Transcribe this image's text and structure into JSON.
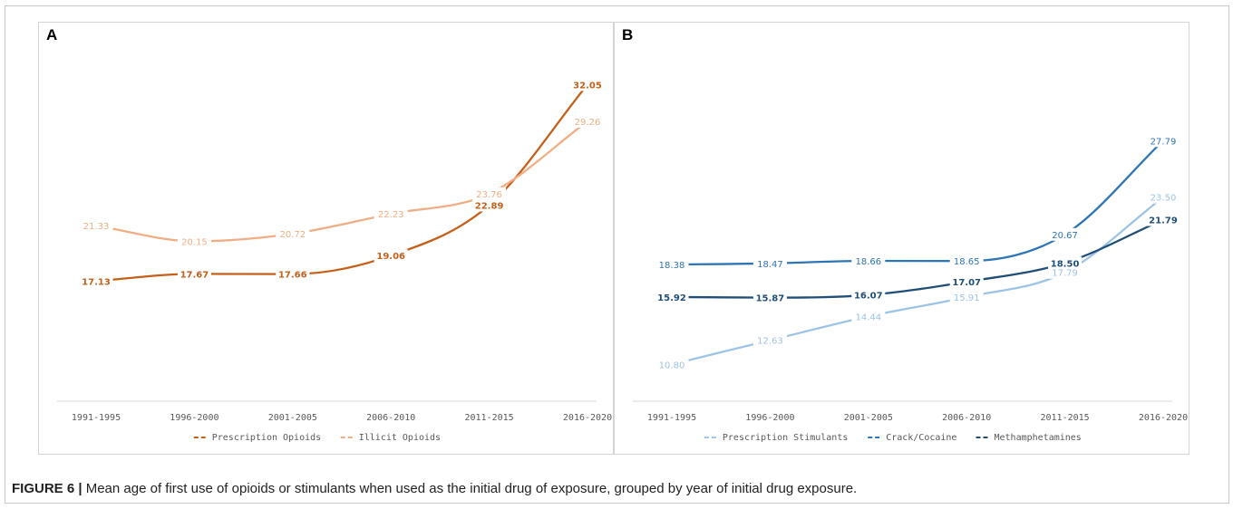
{
  "caption": {
    "figure_label": "FIGURE 6 |",
    "text": " Mean age of first use of opioids or stimulants when used as the initial drug of exposure, grouped by year of initial drug exposure."
  },
  "chart_data": [
    {
      "panel": "A",
      "type": "line",
      "categories": [
        "1991-1995",
        "1996-2000",
        "2001-2005",
        "2006-2010",
        "2011-2015",
        "2016-2020"
      ],
      "ylim": [
        8,
        34
      ],
      "grid": false,
      "legend_position": "bottom",
      "series": [
        {
          "name": "Prescription Opioids",
          "color": "#c5601b",
          "bold": true,
          "values": [
            17.13,
            17.67,
            17.66,
            19.06,
            22.89,
            32.05
          ],
          "labels": [
            "17.13",
            "17.67",
            "17.66",
            "19.06",
            "22.89",
            "32.05"
          ]
        },
        {
          "name": "Illicit Opioids",
          "color": "#f0ae84",
          "bold": false,
          "values": [
            21.33,
            20.15,
            20.72,
            22.23,
            23.76,
            29.26
          ],
          "labels": [
            "21.33",
            "20.15",
            "20.72",
            "22.23",
            "23.76",
            "29.26"
          ]
        }
      ]
    },
    {
      "panel": "B",
      "type": "line",
      "categories": [
        "1991-1995",
        "1996-2000",
        "2001-2005",
        "2006-2010",
        "2011-2015",
        "2016-2020"
      ],
      "ylim": [
        8,
        34
      ],
      "grid": false,
      "legend_position": "bottom",
      "series": [
        {
          "name": "Prescription Stimulants",
          "color": "#9dc3e6",
          "bold": false,
          "values": [
            10.8,
            12.63,
            14.44,
            15.91,
            17.79,
            23.5
          ],
          "labels": [
            "10.80",
            "12.63",
            "14.44",
            "15.91",
            "17.79",
            "23.50"
          ]
        },
        {
          "name": "Crack/Cocaine",
          "color": "#2e75b6",
          "bold": false,
          "values": [
            18.38,
            18.47,
            18.66,
            18.65,
            20.67,
            27.79
          ],
          "labels": [
            "18.38",
            "18.47",
            "18.66",
            "18.65",
            "20.67",
            "27.79"
          ]
        },
        {
          "name": "Methamphetamines",
          "color": "#1f4e79",
          "bold": true,
          "values": [
            15.92,
            15.87,
            16.07,
            17.07,
            18.5,
            21.79
          ],
          "labels": [
            "15.92",
            "15.87",
            "16.07",
            "17.07",
            "18.50",
            "21.79"
          ]
        }
      ]
    }
  ]
}
